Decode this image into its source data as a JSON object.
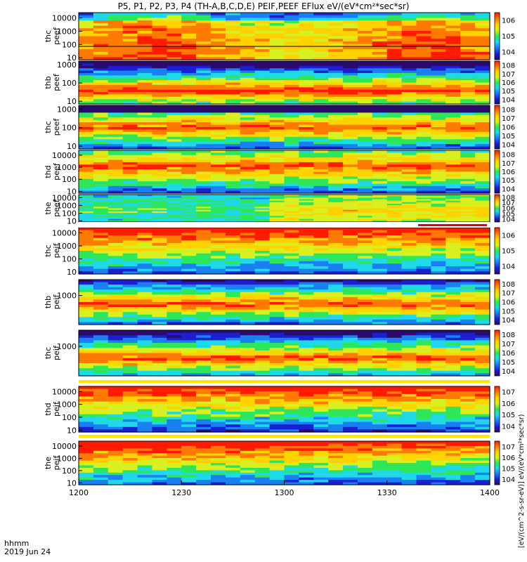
{
  "header": {
    "title": "P5, P1, P2, P3, P4 (TH-A,B,C,D,E) PEIF,PEEF EFlux eV/(eV*cm²*sec*sr)"
  },
  "time_axis": {
    "unit_label": "hhmm",
    "date_label": "2019 Jun 24"
  },
  "colorbar_units": "[eV/(cm^2-s-sr-eV)] eV/(eV*cm²*sec*sr)",
  "chart_data": {
    "type": "heatmap",
    "x": {
      "ticks": [
        "1200",
        "1230",
        "1300",
        "1330",
        "1400"
      ],
      "range": [
        "12:00",
        "14:00"
      ]
    },
    "y_scale": "log",
    "panels": [
      {
        "line1": "thc",
        "line2": "peef",
        "y_ticks": [
          "10",
          "100",
          "1000",
          "10000"
        ],
        "cbar_ticks": [
          "10^4",
          "10^5",
          "10^6"
        ]
      },
      {
        "line1": "thb",
        "line2": "peef",
        "y_ticks": [
          "10",
          "100",
          "1000"
        ],
        "cbar_ticks": [
          "10^4",
          "10^5",
          "10^6",
          "10^7",
          "10^8"
        ]
      },
      {
        "line1": "thc",
        "line2": "peef",
        "y_ticks": [
          "10",
          "100",
          "1000"
        ],
        "cbar_ticks": [
          "10^4",
          "10^5",
          "10^6",
          "10^7",
          "10^8"
        ]
      },
      {
        "line1": "thd",
        "line2": "peef",
        "y_ticks": [
          "10",
          "100",
          "1000",
          "10000"
        ],
        "cbar_ticks": [
          "10^4",
          "10^5",
          "10^6",
          "10^7",
          "10^8"
        ]
      },
      {
        "line1": "the",
        "line2": "peef",
        "y_ticks": [
          "10",
          "100",
          "1000",
          "10000"
        ],
        "cbar_ticks": [
          "10^4",
          "10^5",
          "10^6",
          "10^7",
          "10^8"
        ]
      },
      {
        "line1": "thc",
        "line2": "peif",
        "y_ticks": [
          "10",
          "100",
          "1000",
          "10000"
        ],
        "cbar_ticks": [
          "10^4",
          "10^5",
          "10^6"
        ]
      },
      {
        "line1": "thb",
        "line2": "peif",
        "y_ticks": [
          "1000"
        ],
        "cbar_ticks": [
          "10^4",
          "10^5",
          "10^6",
          "10^7",
          "10^8"
        ]
      },
      {
        "line1": "thc",
        "line2": "peif",
        "y_ticks": [
          "1000"
        ],
        "cbar_ticks": [
          "10^4",
          "10^5",
          "10^6",
          "10^7",
          "10^8"
        ]
      },
      {
        "line1": "thd",
        "line2": "peif",
        "y_ticks": [
          "10",
          "100",
          "1000",
          "10000"
        ],
        "cbar_ticks": [
          "10^4",
          "10^5",
          "10^6",
          "10^7"
        ]
      },
      {
        "line1": "the",
        "line2": "peif",
        "y_ticks": [
          "10",
          "100",
          "1000",
          "10000"
        ],
        "cbar_ticks": [
          "10^4",
          "10^5",
          "10^6",
          "10^7"
        ]
      }
    ],
    "colormap": [
      "#2a0a6a",
      "#1a20d0",
      "#1a7ff0",
      "#1fd8e8",
      "#2ee65a",
      "#d8f020",
      "#ffd200",
      "#ff7a00",
      "#ff1a00"
    ]
  }
}
